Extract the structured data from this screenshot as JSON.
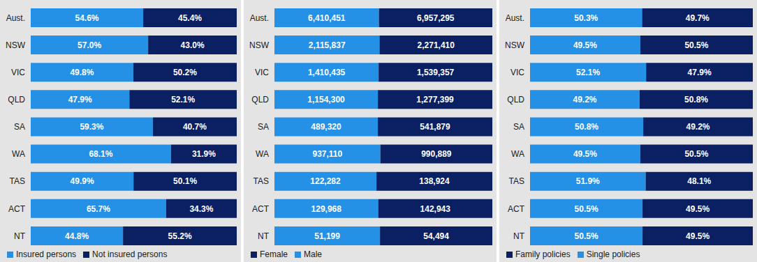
{
  "chart_data": [
    {
      "type": "bar",
      "orientation": "horizontal",
      "stacked": true,
      "data_labels": true,
      "tick_labels": "y",
      "legend": "bottom left",
      "grid": false,
      "categories": [
        "Aust.",
        "NSW",
        "VIC",
        "QLD",
        "SA",
        "WA",
        "TAS",
        "ACT",
        "NT"
      ],
      "series": [
        {
          "name": "Insured persons",
          "color": "#2490e6",
          "values": [
            54.6,
            57.0,
            49.8,
            47.9,
            59.3,
            68.1,
            49.9,
            65.7,
            44.8
          ],
          "value_labels": [
            "54.6%",
            "57.0%",
            "49.8%",
            "47.9%",
            "59.3%",
            "68.1%",
            "49.9%",
            "65.7%",
            "44.8%"
          ]
        },
        {
          "name": "Not insured persons",
          "color": "#0b1f63",
          "values": [
            45.4,
            43.0,
            50.2,
            52.1,
            40.7,
            31.9,
            50.1,
            34.3,
            55.2
          ],
          "value_labels": [
            "45.4%",
            "43.0%",
            "50.2%",
            "52.1%",
            "40.7%",
            "31.9%",
            "50.1%",
            "34.3%",
            "55.2%"
          ]
        }
      ]
    },
    {
      "type": "bar",
      "orientation": "horizontal",
      "stacked": true,
      "data_labels": true,
      "tick_labels": "y",
      "legend": "bottom left",
      "grid": false,
      "categories": [
        "Aust.",
        "NSW",
        "VIC",
        "QLD",
        "SA",
        "WA",
        "TAS",
        "ACT",
        "NT"
      ],
      "series": [
        {
          "name": "Male",
          "color": "#2490e6",
          "values": [
            6410451,
            2115837,
            1410435,
            1154300,
            489320,
            937110,
            122282,
            129968,
            51199
          ],
          "value_labels": [
            "6,410,451",
            "2,115,837",
            "1,410,435",
            "1,154,300",
            "489,320",
            "937,110",
            "122,282",
            "129,968",
            "51,199"
          ]
        },
        {
          "name": "Female",
          "color": "#0b1f63",
          "values": [
            6957295,
            2271410,
            1539357,
            1277399,
            541879,
            990889,
            138924,
            142943,
            54494
          ],
          "value_labels": [
            "6,957,295",
            "2,271,410",
            "1,539,357",
            "1,277,399",
            "541,879",
            "990,889",
            "138,924",
            "142,943",
            "54,494"
          ]
        }
      ]
    },
    {
      "type": "bar",
      "orientation": "horizontal",
      "stacked": true,
      "data_labels": true,
      "tick_labels": "y",
      "legend": "bottom left",
      "grid": false,
      "categories": [
        "Aust.",
        "NSW",
        "VIC",
        "QLD",
        "SA",
        "WA",
        "TAS",
        "ACT",
        "NT"
      ],
      "series": [
        {
          "name": "Single policies",
          "color": "#2490e6",
          "values": [
            50.3,
            49.5,
            52.1,
            49.2,
            50.8,
            49.5,
            51.9,
            50.5,
            50.5
          ],
          "value_labels": [
            "50.3%",
            "49.5%",
            "52.1%",
            "49.2%",
            "50.8%",
            "49.5%",
            "51.9%",
            "50.5%",
            "50.5%"
          ]
        },
        {
          "name": "Family policies",
          "color": "#0b1f63",
          "values": [
            49.7,
            50.5,
            47.9,
            50.8,
            49.2,
            50.5,
            48.1,
            49.5,
            49.5
          ],
          "value_labels": [
            "49.7%",
            "50.5%",
            "47.9%",
            "50.8%",
            "49.2%",
            "50.5%",
            "48.1%",
            "49.5%",
            "49.5%"
          ]
        }
      ]
    }
  ]
}
